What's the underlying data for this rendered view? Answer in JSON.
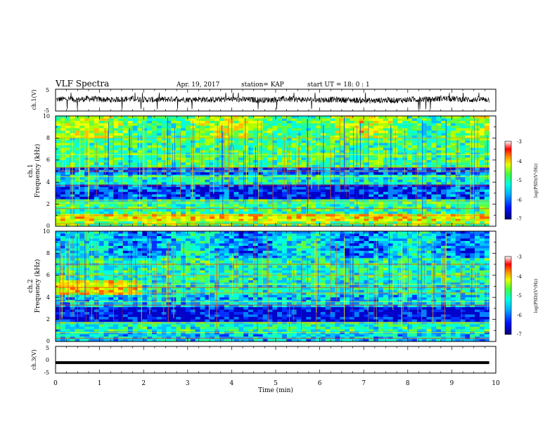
{
  "header": {
    "title": "VLF Spectra",
    "date": "Apr. 19, 2017",
    "station": "station= KAP",
    "start_time": "start  UT =   18: 0  : 1"
  },
  "chart_data": [
    {
      "type": "line",
      "name": "ch1-waveform",
      "ylabel": "ch.1(V)",
      "ylim": [
        -5,
        5
      ],
      "yticks": [
        "5",
        "-5"
      ],
      "xlim": [
        0,
        10
      ],
      "grid": false,
      "x_min": [
        0,
        0.25,
        0.5,
        0.75,
        1,
        1.25,
        1.5,
        1.75,
        2,
        2.25,
        2.5,
        2.75,
        3,
        3.25,
        3.5,
        3.75,
        4,
        4.25,
        4.5,
        4.75,
        5,
        5.25,
        5.5,
        5.75,
        6,
        6.25,
        6.5,
        6.75,
        7,
        7.25,
        7.5,
        7.75,
        8,
        8.25,
        8.5,
        8.75,
        9,
        9.25,
        9.5,
        9.75,
        9.85
      ],
      "y_volts": [
        0.3,
        0.6,
        0.2,
        0.8,
        0.4,
        0.1,
        0.5,
        0.7,
        0.3,
        0.2,
        0.4,
        0.6,
        0.3,
        0.5,
        0.2,
        0.4,
        0.5,
        0.3,
        0.2,
        0.1,
        0.4,
        0.6,
        0.3,
        0.2,
        0.1,
        0.3,
        0.2,
        0.0,
        -0.2,
        -0.3,
        0.1,
        -0.1,
        0.2,
        0.5,
        0.3,
        0.9,
        0.7,
        0.4,
        0.2,
        0.5,
        0.1
      ]
    },
    {
      "type": "heatmap",
      "name": "ch1-spectrogram",
      "ylabel": "ch.1",
      "ylabel2": "Frequency (kHz)",
      "ylim": [
        0,
        10
      ],
      "yticks": [
        "0",
        "2",
        "4",
        "6",
        "8",
        "10"
      ],
      "xlim": [
        0,
        10
      ],
      "colorbar": {
        "label": "log(PSD)(V²/Hz)",
        "range": [
          -7,
          -3
        ],
        "ticks": [
          "-3",
          "-4",
          "-5",
          "-6",
          "-7"
        ]
      },
      "bands_khz": [
        0.2,
        0.5,
        1.0,
        1.6,
        2.1,
        2.3,
        3.7,
        4.5,
        5.0,
        5.3,
        6.5,
        8.0
      ]
    },
    {
      "type": "heatmap",
      "name": "ch2-spectrogram",
      "ylabel": "ch.2",
      "ylabel2": "Frequency (kHz)",
      "ylim": [
        0,
        10
      ],
      "yticks": [
        "0",
        "2",
        "4",
        "6",
        "8",
        "10"
      ],
      "xlim": [
        0,
        10
      ],
      "colorbar": {
        "label": "log(PSD)(V²/Hz)",
        "range": [
          -7,
          -3
        ],
        "ticks": [
          "-3",
          "-4",
          "-5",
          "-6",
          "-7"
        ]
      },
      "bands_khz": [
        0.3,
        0.8,
        1.7,
        3.3,
        3.6,
        4.4,
        4.9,
        5.2,
        6.0,
        7.0
      ]
    },
    {
      "type": "line",
      "name": "ch3-waveform",
      "ylabel": "ch.3(V)",
      "ylim": [
        -5,
        5
      ],
      "yticks": [
        "5",
        "0",
        "-5"
      ],
      "xlim": [
        0,
        10
      ],
      "xlabel": "Time  (min)",
      "xticks": [
        "0",
        "1",
        "2",
        "3",
        "4",
        "5",
        "6",
        "7",
        "8",
        "9",
        "10"
      ],
      "grid": false,
      "x_min": [
        0,
        9.85
      ],
      "y_volts": [
        -1.2,
        -1.2
      ]
    }
  ]
}
